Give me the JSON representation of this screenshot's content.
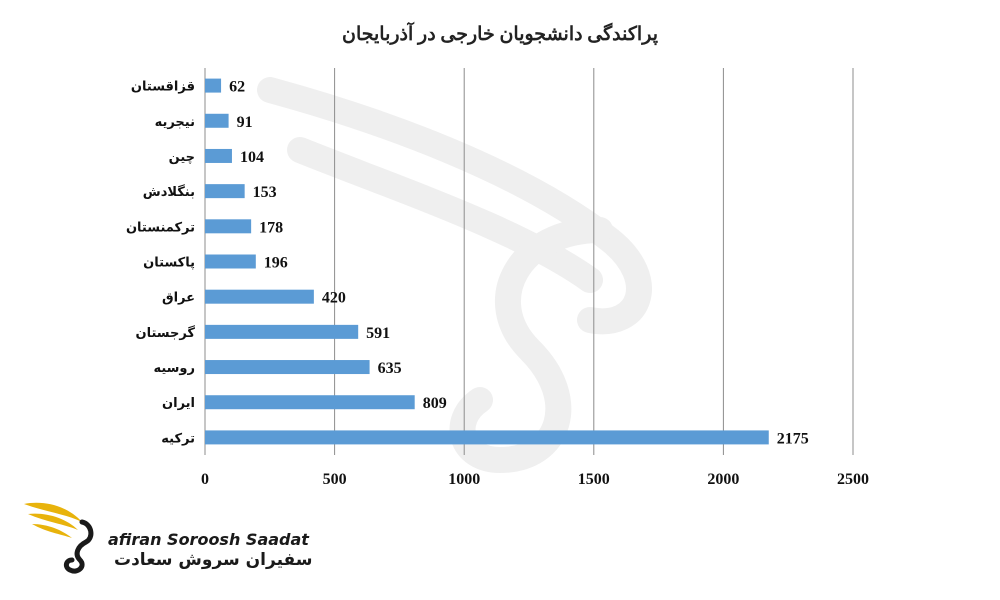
{
  "chart_data": {
    "type": "bar",
    "orientation": "horizontal",
    "title": "پراکندگی دانشجویان خارجی در آذربایجان",
    "categories": [
      "قزاقستان",
      "نیجریه",
      "چین",
      "بنگلادش",
      "ترکمنستان",
      "پاکستان",
      "عراق",
      "گرجستان",
      "روسیه",
      "ایران",
      "ترکیه"
    ],
    "values": [
      62,
      91,
      104,
      153,
      178,
      196,
      420,
      591,
      635,
      809,
      2175
    ],
    "data_labels": [
      "62",
      "91",
      "104",
      "153",
      "178",
      "196",
      "420",
      "591",
      "635",
      "809",
      "2175"
    ],
    "xlim": [
      0,
      2500
    ],
    "x_ticks": [
      "0",
      "500",
      "1000",
      "1500",
      "2000",
      "2500"
    ],
    "grid": "vertical",
    "legend": "none",
    "bar_color": "#5b9bd5",
    "grid_color": "#8c8c8c"
  },
  "watermark": {
    "logo_icon": "swan-wing-logo-icon",
    "brand_en": "afiran Soroosh Saadat",
    "brand_fa": "سفیران سروش سعادت",
    "colors": {
      "gold": "#e8b30c",
      "dark": "#1a1a1a"
    }
  }
}
